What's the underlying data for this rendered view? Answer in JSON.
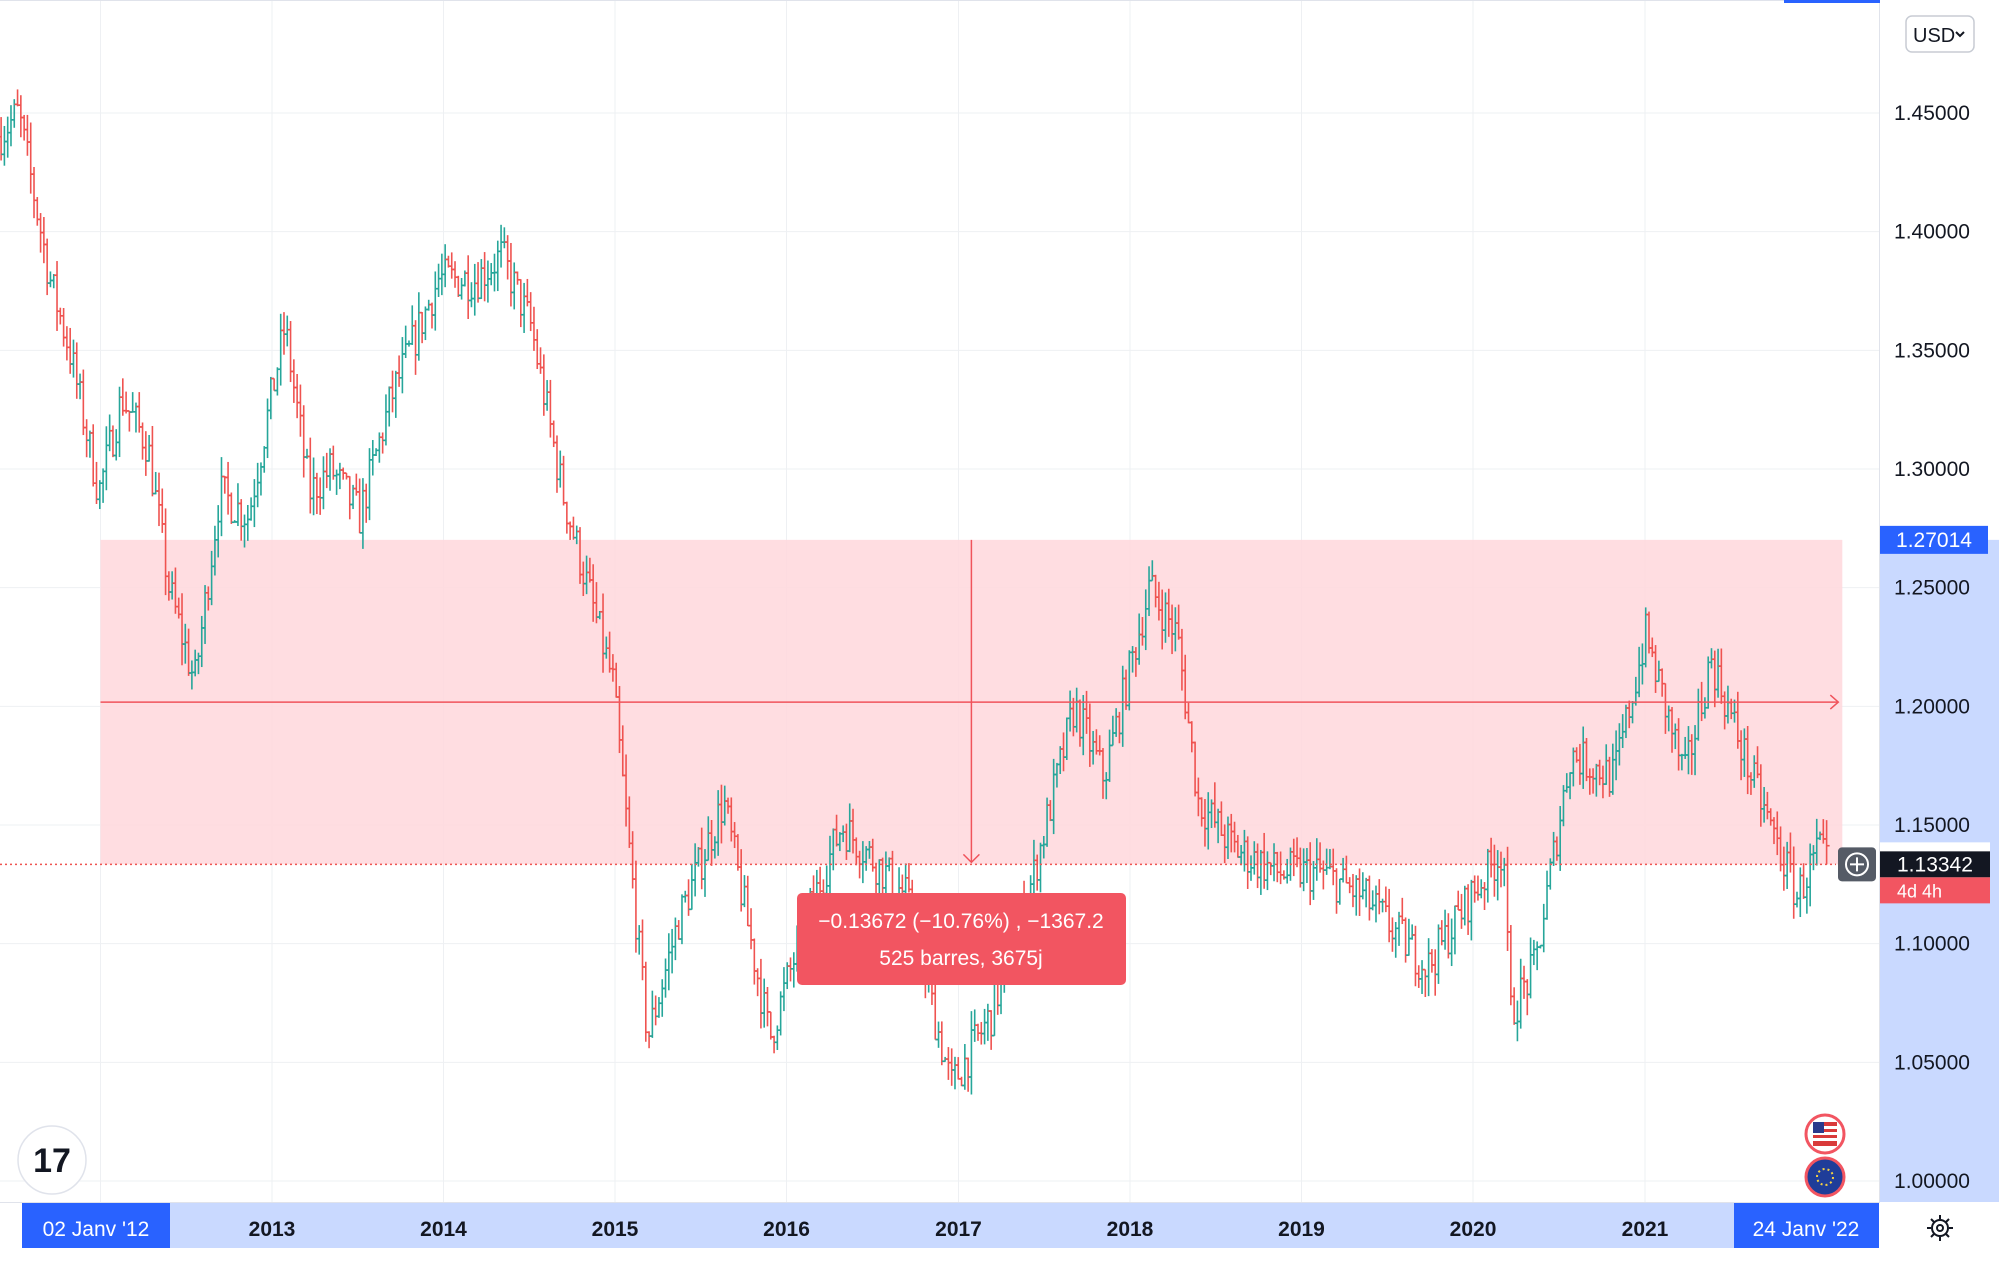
{
  "toolbar": {
    "currency_label": "USD",
    "currency_dropdown_icon": "chevron-down-icon"
  },
  "logo": {
    "text": "17",
    "icon": "tradingview-logo-icon"
  },
  "flags": [
    {
      "name": "us-flag-icon"
    },
    {
      "name": "eu-flag-icon"
    }
  ],
  "settings_icon": "gear-icon",
  "add_alert_icon": "plus-circle-icon",
  "colors": {
    "up": "#26a69a",
    "down": "#ef5350",
    "measure_fill": "#ffd7dc",
    "measure_line": "#f0535b",
    "measure_label_bg": "#f25561",
    "axis_highlight": "#c9d9ff",
    "axis_badge": "#2962ff",
    "current_price_bg": "#131722",
    "countdown_bg": "#f25561",
    "grid": "#eef0f3"
  },
  "chart_data": {
    "type": "candlestick",
    "symbol_hint": "EUR/USD weekly",
    "ylim": [
      0.99,
      1.47
    ],
    "y_ticks": [
      "1.45000",
      "1.40000",
      "1.35000",
      "1.30000",
      "1.25000",
      "1.20000",
      "1.15000",
      "1.10000",
      "1.05000",
      "1.00000"
    ],
    "x_ticks": [
      "2013",
      "2014",
      "2015",
      "2016",
      "2017",
      "2018",
      "2019",
      "2020",
      "2021"
    ],
    "x_range": [
      "2011-06-01",
      "2022-03-15"
    ],
    "range_start_label": "02 Janv '12",
    "range_end_label": "24 Janv '22",
    "highlighted_price_label": "1.27014",
    "current_price_label": "1.13342",
    "countdown_label": "4d 4h",
    "current_price": 1.13342,
    "measure": {
      "from_date": "2012-01-02",
      "to_date": "2022-01-24",
      "from_price": 1.27014,
      "to_price": 1.13342,
      "label_line1": "−0.13672 (−10.76%) , −1367.2",
      "label_line2": "525 barres, 3675j"
    },
    "anchors": [
      [
        "2011-06-01",
        1.44
      ],
      [
        "2011-07-15",
        1.45
      ],
      [
        "2011-09-20",
        1.38
      ],
      [
        "2011-11-01",
        1.35
      ],
      [
        "2012-01-02",
        1.29
      ],
      [
        "2012-02-20",
        1.33
      ],
      [
        "2012-04-15",
        1.31
      ],
      [
        "2012-05-30",
        1.25
      ],
      [
        "2012-07-24",
        1.21
      ],
      [
        "2012-09-15",
        1.29
      ],
      [
        "2012-11-15",
        1.28
      ],
      [
        "2013-02-01",
        1.36
      ],
      [
        "2013-03-25",
        1.29
      ],
      [
        "2013-05-10",
        1.3
      ],
      [
        "2013-07-10",
        1.28
      ],
      [
        "2013-09-15",
        1.33
      ],
      [
        "2013-12-25",
        1.38
      ],
      [
        "2014-03-15",
        1.38
      ],
      [
        "2014-05-08",
        1.39
      ],
      [
        "2014-07-10",
        1.36
      ],
      [
        "2014-09-15",
        1.29
      ],
      [
        "2014-12-31",
        1.21
      ],
      [
        "2015-03-15",
        1.06
      ],
      [
        "2015-05-20",
        1.11
      ],
      [
        "2015-08-24",
        1.16
      ],
      [
        "2015-11-30",
        1.06
      ],
      [
        "2016-02-15",
        1.11
      ],
      [
        "2016-05-01",
        1.15
      ],
      [
        "2016-09-15",
        1.12
      ],
      [
        "2016-12-20",
        1.04
      ],
      [
        "2017-03-15",
        1.07
      ],
      [
        "2017-06-15",
        1.13
      ],
      [
        "2017-09-08",
        1.2
      ],
      [
        "2017-11-10",
        1.17
      ],
      [
        "2018-02-15",
        1.25
      ],
      [
        "2018-04-15",
        1.23
      ],
      [
        "2018-05-30",
        1.16
      ],
      [
        "2018-08-15",
        1.14
      ],
      [
        "2018-11-15",
        1.13
      ],
      [
        "2019-02-15",
        1.13
      ],
      [
        "2019-05-15",
        1.12
      ],
      [
        "2019-09-30",
        1.09
      ],
      [
        "2019-12-31",
        1.12
      ],
      [
        "2020-03-10",
        1.14
      ],
      [
        "2020-03-23",
        1.07
      ],
      [
        "2020-05-15",
        1.09
      ],
      [
        "2020-07-30",
        1.18
      ],
      [
        "2020-10-30",
        1.17
      ],
      [
        "2021-01-06",
        1.23
      ],
      [
        "2021-03-30",
        1.17
      ],
      [
        "2021-05-25",
        1.22
      ],
      [
        "2021-08-20",
        1.17
      ],
      [
        "2021-11-24",
        1.12
      ],
      [
        "2022-01-10",
        1.14
      ],
      [
        "2022-01-24",
        1.133
      ]
    ]
  }
}
